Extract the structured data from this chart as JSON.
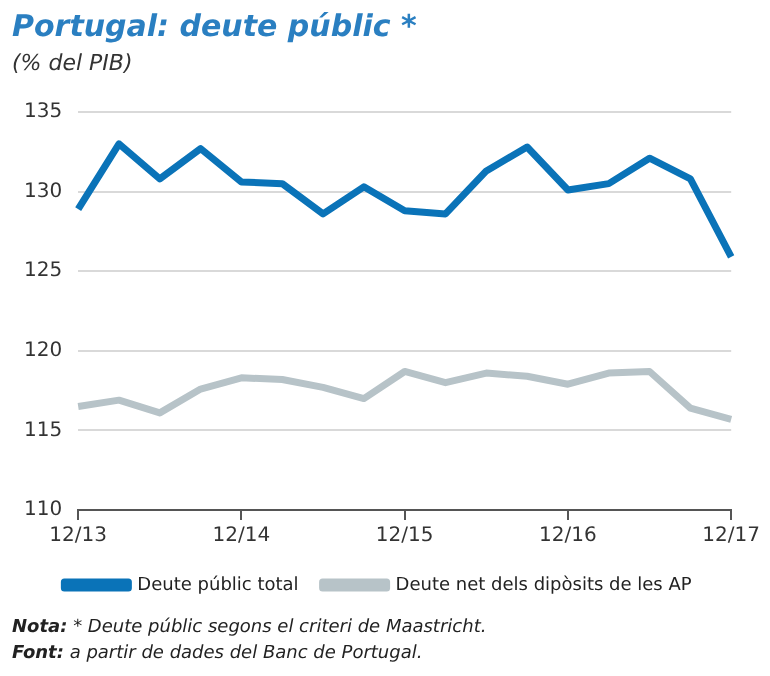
{
  "chart_data": {
    "type": "line",
    "title": "Portugal: deute públic *",
    "subtitle": "(% del PIB)",
    "categories": [
      "12/13",
      null,
      null,
      null,
      "12/14",
      null,
      null,
      null,
      "12/15",
      null,
      null,
      null,
      "12/16",
      null,
      null,
      null,
      "12/17"
    ],
    "series": [
      {
        "name": "Deute públic total",
        "color": "#0a73b8",
        "values": [
          128.9,
          133.0,
          130.8,
          132.7,
          130.6,
          130.5,
          128.6,
          130.3,
          128.8,
          128.6,
          131.3,
          132.8,
          130.1,
          130.5,
          132.1,
          130.8,
          125.9
        ]
      },
      {
        "name": "Deute net dels dipòsits de les AP",
        "color": "#b7c3c8",
        "values": [
          116.5,
          116.9,
          116.1,
          117.6,
          118.3,
          118.2,
          117.7,
          117.0,
          118.7,
          118.0,
          118.6,
          118.4,
          117.9,
          118.6,
          118.7,
          116.4,
          115.7
        ]
      }
    ],
    "ylim": [
      110,
      135
    ],
    "yticks": [
      110,
      115,
      120,
      125,
      130,
      135
    ],
    "grid": "y",
    "legend": "bottom",
    "marker": "none",
    "line_style": "solid",
    "annotations": [
      "Nota: * Deute públic segons el criteri de Maastricht.",
      "Font: a partir de dades del Banc de Portugal."
    ]
  }
}
